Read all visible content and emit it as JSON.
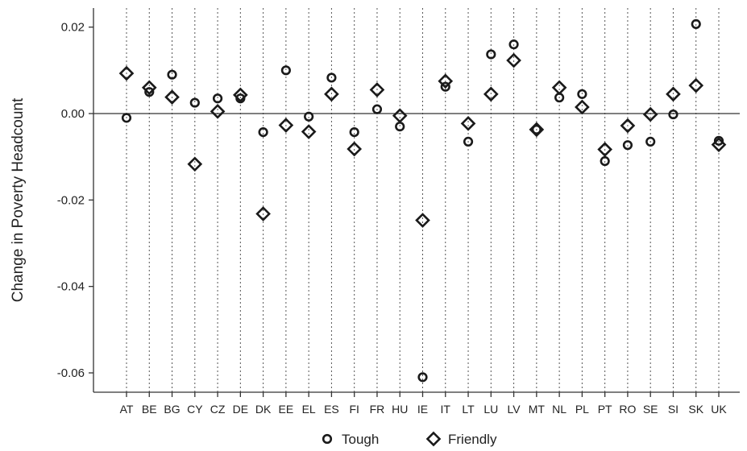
{
  "chart_data": {
    "type": "scatter",
    "ylabel": "Change in Poverty Headcount",
    "xlabel": "",
    "ylim": [
      -0.065,
      0.025
    ],
    "yticks": [
      0.02,
      0.0,
      -0.02,
      -0.04,
      -0.06
    ],
    "ytick_labels": [
      "0.02",
      "0.00",
      "-0.02",
      "-0.04",
      "-0.06"
    ],
    "categories": [
      "AT",
      "BE",
      "BG",
      "CY",
      "CZ",
      "DE",
      "DK",
      "EE",
      "EL",
      "ES",
      "FI",
      "FR",
      "HU",
      "IE",
      "IT",
      "LT",
      "LU",
      "LV",
      "MT",
      "NL",
      "PL",
      "PT",
      "RO",
      "SE",
      "SI",
      "SK",
      "UK"
    ],
    "series": [
      {
        "name": "Tough",
        "marker": "circle",
        "values": [
          -0.001,
          0.005,
          0.009,
          0.0025,
          0.0035,
          0.0035,
          -0.0043,
          0.01,
          -0.0007,
          0.0083,
          -0.0043,
          0.001,
          -0.003,
          -0.061,
          0.0062,
          -0.0065,
          0.0137,
          0.016,
          -0.0037,
          0.0037,
          0.0045,
          -0.011,
          -0.0073,
          -0.0065,
          -0.0002,
          0.0207,
          -0.0063
        ]
      },
      {
        "name": "Friendly",
        "marker": "diamond",
        "values": [
          0.0093,
          0.006,
          0.0038,
          -0.0117,
          0.0005,
          0.0043,
          -0.0232,
          -0.0027,
          -0.0042,
          0.0045,
          -0.0082,
          0.0055,
          -0.0005,
          -0.0247,
          0.0075,
          -0.0023,
          0.0045,
          0.0123,
          -0.0037,
          0.006,
          0.0015,
          -0.0083,
          -0.0028,
          -0.0002,
          0.0045,
          0.0065,
          -0.0072
        ]
      }
    ],
    "reference_line": 0,
    "grid": "vertical dotted at each category",
    "legend_position": "bottom-center",
    "colors": {
      "marker": "#1a1a1a",
      "axis": "#333333",
      "grid": "#555555"
    }
  }
}
